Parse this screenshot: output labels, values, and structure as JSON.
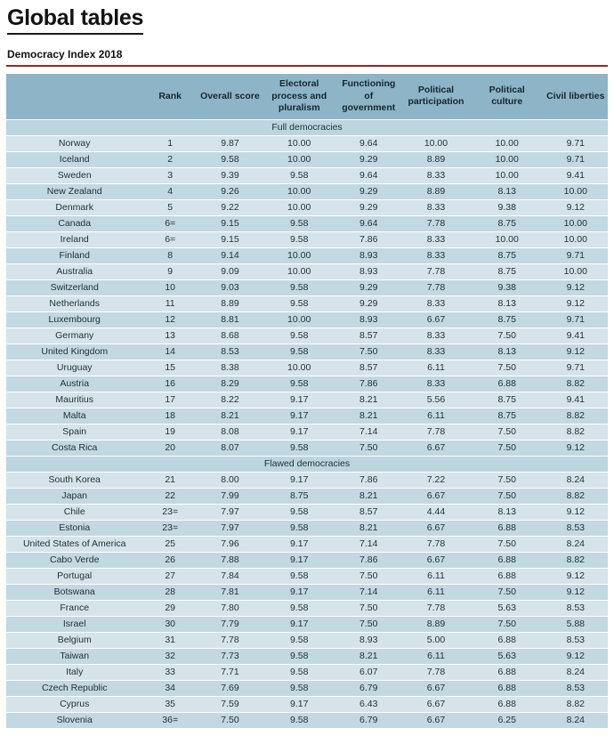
{
  "page": {
    "title": "Global tables",
    "section_heading": "Democracy Index 2018"
  },
  "colors": {
    "header_bg": "#8db5c7",
    "row_light": "#d5e4ea",
    "row_dark": "#c2d8e2",
    "section_row_bg": "#bcd5e0",
    "rule_red": "#8f2a25",
    "title_underline": "#1a1a1a",
    "text": "#1e3038"
  },
  "table": {
    "columns": [
      "",
      "Rank",
      "Overall score",
      "Electoral process and pluralism",
      "Functioning of government",
      "Political participation",
      "Political culture",
      "Civil liberties"
    ],
    "sections": [
      {
        "label": "Full democracies",
        "rows": [
          [
            "Norway",
            "1",
            "9.87",
            "10.00",
            "9.64",
            "10.00",
            "10.00",
            "9.71"
          ],
          [
            "Iceland",
            "2",
            "9.58",
            "10.00",
            "9.29",
            "8.89",
            "10.00",
            "9.71"
          ],
          [
            "Sweden",
            "3",
            "9.39",
            "9.58",
            "9.64",
            "8.33",
            "10.00",
            "9.41"
          ],
          [
            "New Zealand",
            "4",
            "9.26",
            "10.00",
            "9.29",
            "8.89",
            "8.13",
            "10.00"
          ],
          [
            "Denmark",
            "5",
            "9.22",
            "10.00",
            "9.29",
            "8.33",
            "9.38",
            "9.12"
          ],
          [
            "Canada",
            "6=",
            "9.15",
            "9.58",
            "9.64",
            "7.78",
            "8.75",
            "10.00"
          ],
          [
            "Ireland",
            "6=",
            "9.15",
            "9.58",
            "7.86",
            "8.33",
            "10.00",
            "10.00"
          ],
          [
            "Finland",
            "8",
            "9.14",
            "10.00",
            "8.93",
            "8.33",
            "8.75",
            "9.71"
          ],
          [
            "Australia",
            "9",
            "9.09",
            "10.00",
            "8.93",
            "7.78",
            "8.75",
            "10.00"
          ],
          [
            "Switzerland",
            "10",
            "9.03",
            "9.58",
            "9.29",
            "7.78",
            "9.38",
            "9.12"
          ],
          [
            "Netherlands",
            "11",
            "8.89",
            "9.58",
            "9.29",
            "8.33",
            "8.13",
            "9.12"
          ],
          [
            "Luxembourg",
            "12",
            "8.81",
            "10.00",
            "8.93",
            "6.67",
            "8.75",
            "9.71"
          ],
          [
            "Germany",
            "13",
            "8.68",
            "9.58",
            "8.57",
            "8.33",
            "7.50",
            "9.41"
          ],
          [
            "United Kingdom",
            "14",
            "8.53",
            "9.58",
            "7.50",
            "8.33",
            "8.13",
            "9.12"
          ],
          [
            "Uruguay",
            "15",
            "8.38",
            "10.00",
            "8.57",
            "6.11",
            "7.50",
            "9.71"
          ],
          [
            "Austria",
            "16",
            "8.29",
            "9.58",
            "7.86",
            "8.33",
            "6.88",
            "8.82"
          ],
          [
            "Mauritius",
            "17",
            "8.22",
            "9.17",
            "8.21",
            "5.56",
            "8.75",
            "9.41"
          ],
          [
            "Malta",
            "18",
            "8.21",
            "9.17",
            "8.21",
            "6.11",
            "8.75",
            "8.82"
          ],
          [
            "Spain",
            "19",
            "8.08",
            "9.17",
            "7.14",
            "7.78",
            "7.50",
            "8.82"
          ],
          [
            "Costa Rica",
            "20",
            "8.07",
            "9.58",
            "7.50",
            "6.67",
            "7.50",
            "9.12"
          ]
        ]
      },
      {
        "label": "Flawed democracies",
        "rows": [
          [
            "South Korea",
            "21",
            "8.00",
            "9.17",
            "7.86",
            "7.22",
            "7.50",
            "8.24"
          ],
          [
            "Japan",
            "22",
            "7.99",
            "8.75",
            "8.21",
            "6.67",
            "7.50",
            "8.82"
          ],
          [
            "Chile",
            "23=",
            "7.97",
            "9.58",
            "8.57",
            "4.44",
            "8.13",
            "9.12"
          ],
          [
            "Estonia",
            "23=",
            "7.97",
            "9.58",
            "8.21",
            "6.67",
            "6.88",
            "8.53"
          ],
          [
            "United States of America",
            "25",
            "7.96",
            "9.17",
            "7.14",
            "7.78",
            "7.50",
            "8.24"
          ],
          [
            "Cabo Verde",
            "26",
            "7.88",
            "9.17",
            "7.86",
            "6.67",
            "6.88",
            "8.82"
          ],
          [
            "Portugal",
            "27",
            "7.84",
            "9.58",
            "7.50",
            "6.11",
            "6.88",
            "9.12"
          ],
          [
            "Botswana",
            "28",
            "7.81",
            "9.17",
            "7.14",
            "6.11",
            "7.50",
            "9.12"
          ],
          [
            "France",
            "29",
            "7.80",
            "9.58",
            "7.50",
            "7.78",
            "5.63",
            "8.53"
          ],
          [
            "Israel",
            "30",
            "7.79",
            "9.17",
            "7.50",
            "8.89",
            "7.50",
            "5.88"
          ],
          [
            "Belgium",
            "31",
            "7.78",
            "9.58",
            "8.93",
            "5.00",
            "6.88",
            "8.53"
          ],
          [
            "Taiwan",
            "32",
            "7.73",
            "9.58",
            "8.21",
            "6.11",
            "5.63",
            "9.12"
          ],
          [
            "Italy",
            "33",
            "7.71",
            "9.58",
            "6.07",
            "7.78",
            "6.88",
            "8.24"
          ],
          [
            "Czech Republic",
            "34",
            "7.69",
            "9.58",
            "6.79",
            "6.67",
            "6.88",
            "8.53"
          ],
          [
            "Cyprus",
            "35",
            "7.59",
            "9.17",
            "6.43",
            "6.67",
            "6.88",
            "8.82"
          ],
          [
            "Slovenia",
            "36=",
            "7.50",
            "9.58",
            "6.79",
            "6.67",
            "6.25",
            "8.24"
          ]
        ]
      }
    ]
  }
}
